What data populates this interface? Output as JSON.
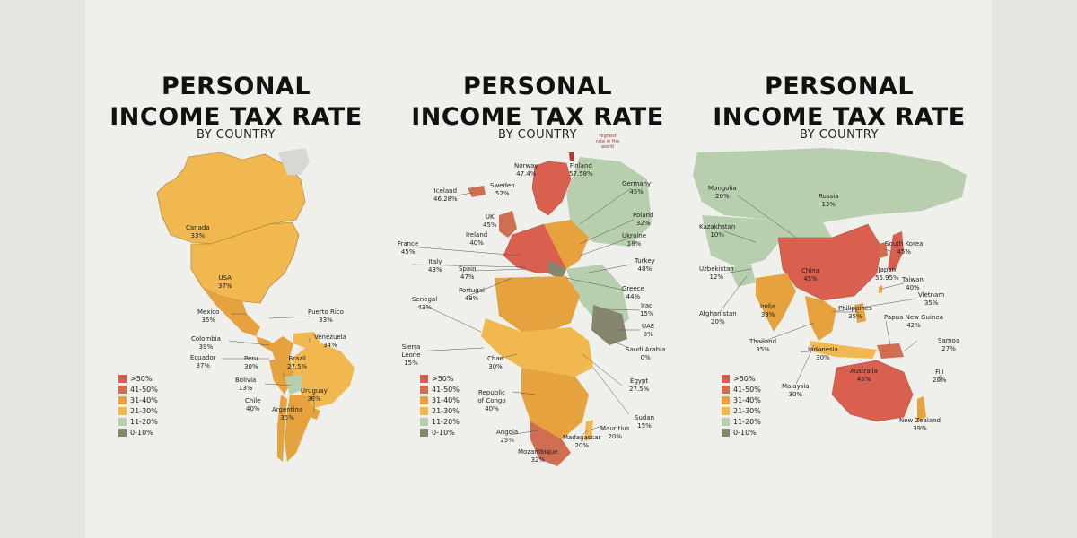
{
  "colors": {
    "gt50": "#d9604f",
    "r41_50": "#cf6e50",
    "r31_40": "#e6a23e",
    "r21_30": "#f0b84e",
    "r11_20": "#b7cfae",
    "r0_10": "#86866f"
  },
  "legend": [
    {
      "label": ">50%",
      "color": "#d9604f"
    },
    {
      "label": "41-50%",
      "color": "#cf6e50"
    },
    {
      "label": "31-40%",
      "color": "#e6a23e"
    },
    {
      "label": "21-30%",
      "color": "#f0b84e"
    },
    {
      "label": "11-20%",
      "color": "#b7cfae"
    },
    {
      "label": "0-10%",
      "color": "#86866f"
    }
  ],
  "panels": [
    {
      "title_line1": "PERSONAL",
      "title_line2": "INCOME TAX RATE",
      "subtitle": "BY COUNTRY",
      "labels": [
        {
          "name": "Canada",
          "value": "33%"
        },
        {
          "name": "USA",
          "value": "37%"
        },
        {
          "name": "Mexico",
          "value": "35%"
        },
        {
          "name": "Puerto Rico",
          "value": "33%"
        },
        {
          "name": "Colombia",
          "value": "39%"
        },
        {
          "name": "Venezuela",
          "value": "34%"
        },
        {
          "name": "Ecuador",
          "value": "37%"
        },
        {
          "name": "Peru",
          "value": "30%"
        },
        {
          "name": "Brazil",
          "value": "27.5%"
        },
        {
          "name": "Bolivia",
          "value": "13%"
        },
        {
          "name": "Uruguay",
          "value": "36%"
        },
        {
          "name": "Chile",
          "value": "40%"
        },
        {
          "name": "Argentina",
          "value": "35%"
        }
      ]
    },
    {
      "title_line1": "PERSONAL",
      "title_line2": "INCOME TAX RATE",
      "subtitle": "BY COUNTRY",
      "note": "Highest rate in the world",
      "labels": [
        {
          "name": "Norway",
          "value": "47.4%"
        },
        {
          "name": "Finland",
          "value": "57.58%"
        },
        {
          "name": "Iceland",
          "value": "46.28%"
        },
        {
          "name": "Sweden",
          "value": "52%"
        },
        {
          "name": "Germany",
          "value": "45%"
        },
        {
          "name": "UK",
          "value": "45%"
        },
        {
          "name": "Poland",
          "value": "32%"
        },
        {
          "name": "Ireland",
          "value": "40%"
        },
        {
          "name": "Ukraine",
          "value": "18%"
        },
        {
          "name": "France",
          "value": "45%"
        },
        {
          "name": "Turkey",
          "value": "40%"
        },
        {
          "name": "Italy",
          "value": "43%"
        },
        {
          "name": "Spain",
          "value": "47%"
        },
        {
          "name": "Greece",
          "value": "44%"
        },
        {
          "name": "Portugal",
          "value": "48%"
        },
        {
          "name": "Iraq",
          "value": "15%"
        },
        {
          "name": "Senegal",
          "value": "43%"
        },
        {
          "name": "UAE",
          "value": "0%"
        },
        {
          "name": "Saudi Arabia",
          "value": "0%"
        },
        {
          "name": "Sierra Leone",
          "value": "15%"
        },
        {
          "name": "Chad",
          "value": "30%"
        },
        {
          "name": "Egypt",
          "value": "27.5%"
        },
        {
          "name": "Republic of Congo",
          "value": "40%"
        },
        {
          "name": "Sudan",
          "value": "15%"
        },
        {
          "name": "Mauritius",
          "value": "20%"
        },
        {
          "name": "Angola",
          "value": "25%"
        },
        {
          "name": "Madagascar",
          "value": "20%"
        },
        {
          "name": "Mozambique",
          "value": "32%"
        }
      ]
    },
    {
      "title_line1": "PERSONAL",
      "title_line2": "INCOME TAX RATE",
      "subtitle": "BY COUNTRY",
      "labels": [
        {
          "name": "Mongolia",
          "value": "20%"
        },
        {
          "name": "Russia",
          "value": "13%"
        },
        {
          "name": "Kazakhstan",
          "value": "10%"
        },
        {
          "name": "South Korea",
          "value": "45%"
        },
        {
          "name": "Uzbekistan",
          "value": "12%"
        },
        {
          "name": "China",
          "value": "45%"
        },
        {
          "name": "Japan",
          "value": "55.95%"
        },
        {
          "name": "Taiwan",
          "value": "40%"
        },
        {
          "name": "Vietnam",
          "value": "35%"
        },
        {
          "name": "Afghanistan",
          "value": "20%"
        },
        {
          "name": "India",
          "value": "39%"
        },
        {
          "name": "Philippines",
          "value": "35%"
        },
        {
          "name": "Papua New Guinea",
          "value": "42%"
        },
        {
          "name": "Thailand",
          "value": "35%"
        },
        {
          "name": "Indonesia",
          "value": "30%"
        },
        {
          "name": "Samoa",
          "value": "27%"
        },
        {
          "name": "Australia",
          "value": "45%"
        },
        {
          "name": "Malaysia",
          "value": "30%"
        },
        {
          "name": "Fiji",
          "value": "20%"
        },
        {
          "name": "New Zealand",
          "value": "39%"
        }
      ]
    }
  ]
}
